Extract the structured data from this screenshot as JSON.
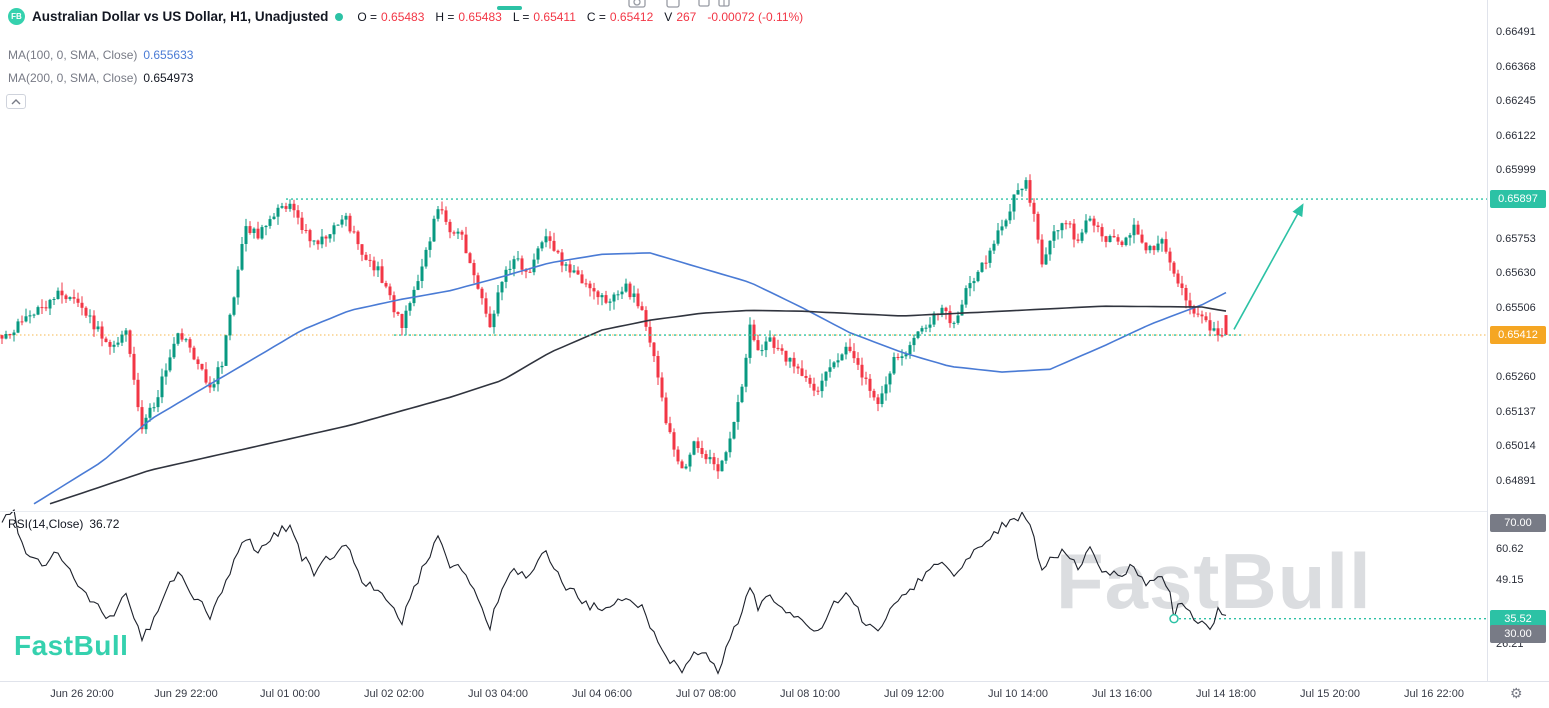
{
  "header": {
    "logo": "FB",
    "title": "Australian Dollar vs US Dollar, H1, Unadjusted",
    "ohlc": [
      {
        "label": "O =",
        "value": "0.65483"
      },
      {
        "label": "H =",
        "value": "0.65483"
      },
      {
        "label": "L =",
        "value": "0.65411"
      },
      {
        "label": "C =",
        "value": "0.65412"
      }
    ],
    "volume_label": "V",
    "volume": "267",
    "change": "-0.00072 (-0.11%)"
  },
  "indicators": {
    "ma100": {
      "label": "MA(100, 0, SMA, Close)",
      "value": "0.655633"
    },
    "ma200": {
      "label": "MA(200, 0, SMA, Close)",
      "value": "0.654973"
    },
    "rsi": {
      "label": "RSI(14,Close)",
      "value": "36.72"
    }
  },
  "price_axis": {
    "ticks": [
      {
        "label": "0.66491",
        "price": 0.66491
      },
      {
        "label": "0.66368",
        "price": 0.66368
      },
      {
        "label": "0.66245",
        "price": 0.66245
      },
      {
        "label": "0.66122",
        "price": 0.66122
      },
      {
        "label": "0.65999",
        "price": 0.65999
      },
      {
        "label": "0.65753",
        "price": 0.65753
      },
      {
        "label": "0.65630",
        "price": 0.6563
      },
      {
        "label": "0.65506",
        "price": 0.65506
      },
      {
        "label": "0.65260",
        "price": 0.6526
      },
      {
        "label": "0.65137",
        "price": 0.65137
      },
      {
        "label": "0.65014",
        "price": 0.65014
      },
      {
        "label": "0.64891",
        "price": 0.64891
      }
    ]
  },
  "price_badges": {
    "resistance": "0.65897",
    "last": "0.65412"
  },
  "rsi_axis": {
    "ticks": [
      {
        "label": "60.62",
        "value": 60.62
      },
      {
        "label": "49.15",
        "value": 49.15
      },
      {
        "label": "26.21",
        "value": 26.21
      }
    ],
    "badges": {
      "upper": "70.00",
      "lower": "30.00",
      "current": "35.52"
    }
  },
  "time_axis": {
    "labels": [
      "Jun 26 20:00",
      "Jun 29 22:00",
      "Jul 01 00:00",
      "Jul 02 02:00",
      "Jul 03 04:00",
      "Jul 04 06:00",
      "Jul 07 08:00",
      "Jul 08 10:00",
      "Jul 09 12:00",
      "Jul 10 14:00",
      "Jul 13 16:00",
      "Jul 14 18:00",
      "Jul 15 20:00",
      "Jul 16 22:00"
    ]
  },
  "watermark": "FastBull",
  "brand_logo": "FastBull",
  "chart_data": {
    "type": "candlestick",
    "symbol": "AUD/USD",
    "timeframe": "H1",
    "title": "Australian Dollar vs US Dollar, H1, Unadjusted",
    "bars": 307,
    "price_range": {
      "top": 0.66607,
      "bottom": 0.64788
    },
    "noise": 0.00035,
    "wick": 0.0003,
    "last_bar": {
      "open": 0.65483,
      "high": 0.65483,
      "low": 0.65411,
      "close": 0.65412,
      "volume": 267,
      "change": -0.00072,
      "change_pct": -0.11
    },
    "close_keyframes": [
      [
        0,
        0.6539
      ],
      [
        5,
        0.6547
      ],
      [
        10,
        0.6551
      ],
      [
        14,
        0.6556
      ],
      [
        18,
        0.6554
      ],
      [
        22,
        0.6547
      ],
      [
        27,
        0.6536
      ],
      [
        31,
        0.6542
      ],
      [
        35,
        0.6509
      ],
      [
        38,
        0.6516
      ],
      [
        44,
        0.6542
      ],
      [
        48,
        0.6534
      ],
      [
        52,
        0.6522
      ],
      [
        55,
        0.6531
      ],
      [
        58,
        0.6556
      ],
      [
        61,
        0.658
      ],
      [
        64,
        0.6577
      ],
      [
        67,
        0.6584
      ],
      [
        70,
        0.6586
      ],
      [
        72,
        0.65875
      ],
      [
        75,
        0.658
      ],
      [
        78,
        0.6574
      ],
      [
        82,
        0.6578
      ],
      [
        86,
        0.6582
      ],
      [
        90,
        0.6571
      ],
      [
        94,
        0.6564
      ],
      [
        98,
        0.6551
      ],
      [
        100,
        0.6544
      ],
      [
        103,
        0.6557
      ],
      [
        106,
        0.6571
      ],
      [
        109,
        0.6587
      ],
      [
        112,
        0.6579
      ],
      [
        115,
        0.6576
      ],
      [
        118,
        0.6564
      ],
      [
        122,
        0.6543
      ],
      [
        125,
        0.6561
      ],
      [
        128,
        0.6568
      ],
      [
        132,
        0.6564
      ],
      [
        136,
        0.6577
      ],
      [
        140,
        0.6567
      ],
      [
        143,
        0.6564
      ],
      [
        147,
        0.6557
      ],
      [
        152,
        0.6553
      ],
      [
        156,
        0.6558
      ],
      [
        160,
        0.6551
      ],
      [
        163,
        0.6534
      ],
      [
        166,
        0.651
      ],
      [
        170,
        0.6492
      ],
      [
        173,
        0.6503
      ],
      [
        176,
        0.6498
      ],
      [
        179,
        0.6492
      ],
      [
        182,
        0.6504
      ],
      [
        185,
        0.6523
      ],
      [
        187,
        0.6545
      ],
      [
        189,
        0.6536
      ],
      [
        192,
        0.6539
      ],
      [
        196,
        0.6533
      ],
      [
        200,
        0.6528
      ],
      [
        204,
        0.6521
      ],
      [
        207,
        0.653
      ],
      [
        211,
        0.6536
      ],
      [
        215,
        0.6527
      ],
      [
        219,
        0.6517
      ],
      [
        223,
        0.6532
      ],
      [
        227,
        0.6537
      ],
      [
        231,
        0.6545
      ],
      [
        235,
        0.6551
      ],
      [
        238,
        0.6545
      ],
      [
        242,
        0.656
      ],
      [
        246,
        0.6568
      ],
      [
        250,
        0.658
      ],
      [
        253,
        0.659
      ],
      [
        256,
        0.6595
      ],
      [
        258,
        0.6585
      ],
      [
        260,
        0.6567
      ],
      [
        263,
        0.6577
      ],
      [
        266,
        0.6582
      ],
      [
        269,
        0.6574
      ],
      [
        272,
        0.6584
      ],
      [
        276,
        0.6576
      ],
      [
        280,
        0.6574
      ],
      [
        283,
        0.658
      ],
      [
        286,
        0.6571
      ],
      [
        290,
        0.6574
      ],
      [
        294,
        0.6559
      ],
      [
        298,
        0.6549
      ],
      [
        302,
        0.6544
      ],
      [
        306,
        0.65412
      ]
    ],
    "overlays": [
      {
        "name": "MA100",
        "color": "#4a7bd5",
        "keyframes": [
          [
            8,
            0.6481
          ],
          [
            25,
            0.6496
          ],
          [
            37,
            0.6511
          ],
          [
            50,
            0.6522
          ],
          [
            62,
            0.6532
          ],
          [
            75,
            0.6543
          ],
          [
            87,
            0.655
          ],
          [
            100,
            0.6554
          ],
          [
            112,
            0.6557
          ],
          [
            125,
            0.6562
          ],
          [
            137,
            0.6567
          ],
          [
            150,
            0.657
          ],
          [
            162,
            0.65705
          ],
          [
            175,
            0.6565
          ],
          [
            187,
            0.656
          ],
          [
            200,
            0.6551
          ],
          [
            212,
            0.6542
          ],
          [
            225,
            0.6535
          ],
          [
            237,
            0.653
          ],
          [
            250,
            0.6528
          ],
          [
            262,
            0.6529
          ],
          [
            275,
            0.6537
          ],
          [
            287,
            0.6545
          ],
          [
            300,
            0.6552
          ],
          [
            306,
            0.655633
          ]
        ]
      },
      {
        "name": "MA200",
        "color": "#30343e",
        "keyframes": [
          [
            12,
            0.6481
          ],
          [
            37,
            0.6493
          ],
          [
            62,
            0.6501
          ],
          [
            87,
            0.6509
          ],
          [
            112,
            0.6519
          ],
          [
            125,
            0.6525
          ],
          [
            137,
            0.6535
          ],
          [
            150,
            0.6543
          ],
          [
            162,
            0.65465
          ],
          [
            175,
            0.6549
          ],
          [
            187,
            0.655
          ],
          [
            200,
            0.65497
          ],
          [
            225,
            0.6548
          ],
          [
            250,
            0.65497
          ],
          [
            275,
            0.65515
          ],
          [
            300,
            0.65512
          ],
          [
            306,
            0.654973
          ]
        ]
      }
    ],
    "rsi": {
      "period": 14,
      "last": 36.72,
      "keyframes": [
        [
          0,
          71
        ],
        [
          3,
          74
        ],
        [
          5,
          62
        ],
        [
          10,
          55
        ],
        [
          14,
          60
        ],
        [
          18,
          50
        ],
        [
          22,
          42
        ],
        [
          27,
          35
        ],
        [
          31,
          45
        ],
        [
          35,
          28
        ],
        [
          38,
          35
        ],
        [
          42,
          48
        ],
        [
          44,
          52
        ],
        [
          48,
          44
        ],
        [
          52,
          36
        ],
        [
          55,
          45
        ],
        [
          58,
          56
        ],
        [
          61,
          65
        ],
        [
          64,
          60
        ],
        [
          67,
          64
        ],
        [
          70,
          68
        ],
        [
          72,
          69
        ],
        [
          75,
          58
        ],
        [
          78,
          52
        ],
        [
          82,
          58
        ],
        [
          86,
          62
        ],
        [
          90,
          50
        ],
        [
          94,
          45
        ],
        [
          98,
          38
        ],
        [
          100,
          35
        ],
        [
          103,
          46
        ],
        [
          106,
          56
        ],
        [
          109,
          66
        ],
        [
          112,
          55
        ],
        [
          115,
          54
        ],
        [
          118,
          45
        ],
        [
          122,
          33
        ],
        [
          125,
          46
        ],
        [
          128,
          53
        ],
        [
          132,
          50
        ],
        [
          136,
          60
        ],
        [
          140,
          48
        ],
        [
          143,
          45
        ],
        [
          147,
          40
        ],
        [
          152,
          38
        ],
        [
          156,
          44
        ],
        [
          160,
          40
        ],
        [
          163,
          30
        ],
        [
          166,
          22
        ],
        [
          170,
          17
        ],
        [
          173,
          25
        ],
        [
          176,
          22
        ],
        [
          179,
          16
        ],
        [
          182,
          28
        ],
        [
          185,
          38
        ],
        [
          187,
          48
        ],
        [
          189,
          40
        ],
        [
          192,
          44
        ],
        [
          196,
          38
        ],
        [
          200,
          34
        ],
        [
          204,
          30
        ],
        [
          207,
          39
        ],
        [
          211,
          44
        ],
        [
          215,
          36
        ],
        [
          219,
          30
        ],
        [
          223,
          42
        ],
        [
          227,
          46
        ],
        [
          231,
          52
        ],
        [
          235,
          57
        ],
        [
          238,
          50
        ],
        [
          242,
          59
        ],
        [
          246,
          64
        ],
        [
          250,
          69
        ],
        [
          253,
          72
        ],
        [
          256,
          73
        ],
        [
          258,
          64
        ],
        [
          260,
          52
        ],
        [
          263,
          58
        ],
        [
          266,
          60
        ],
        [
          269,
          54
        ],
        [
          272,
          60
        ],
        [
          276,
          52
        ],
        [
          280,
          51
        ],
        [
          283,
          55
        ],
        [
          286,
          47
        ],
        [
          290,
          50
        ],
        [
          294,
          41
        ],
        [
          298,
          36
        ],
        [
          302,
          33
        ],
        [
          304,
          38
        ],
        [
          306,
          36.72
        ]
      ],
      "marker": {
        "bar": 293,
        "value": 35.52
      }
    },
    "levels": {
      "resistance": {
        "price": 0.65897,
        "from_bar": 71
      },
      "support": {
        "price": 0.65412,
        "from_bar": 98,
        "to_bar": 310
      },
      "last_price": {
        "price": 0.65412
      },
      "rsi_level": {
        "value": 35.52,
        "from_bar": 293
      }
    },
    "arrow": {
      "from": {
        "bar": 308,
        "price": 0.65432
      },
      "to": {
        "bar": 325,
        "price": 0.65872
      }
    },
    "colors": {
      "up": "#089981",
      "down": "#f23645",
      "teal": "#2cc2a5",
      "orange": "#f5a623",
      "rsi_line": "#1d212b"
    }
  }
}
